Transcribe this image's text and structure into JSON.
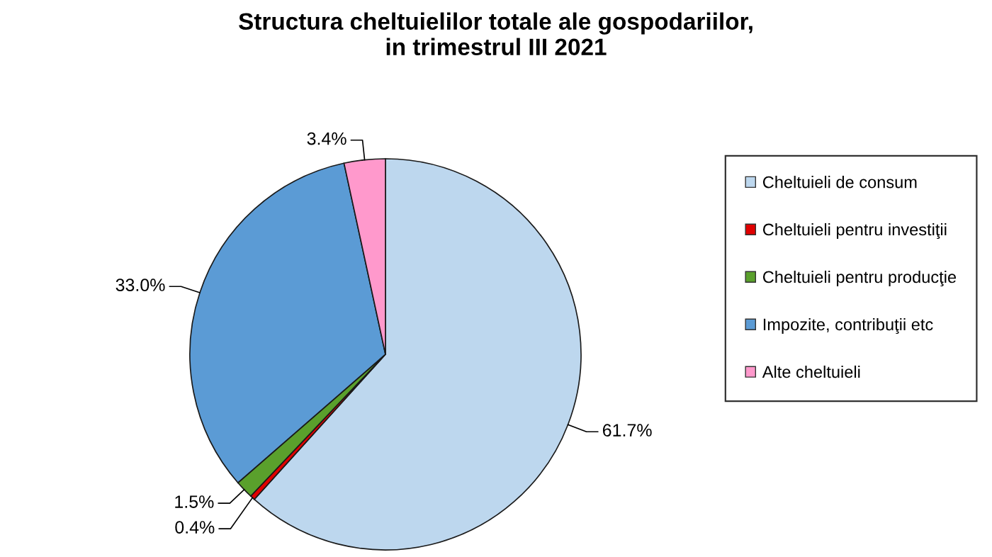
{
  "chart_data": {
    "type": "pie",
    "title": "Structura cheltuielilor totale ale gospodariilor,\nin trimestrul III 2021",
    "categories": [
      "Cheltuieli de consum",
      "Cheltuieli pentru investiţii",
      "Cheltuieli pentru producţie",
      "Impozite, contribuţii etc",
      "Alte cheltuieli"
    ],
    "values": [
      61.7,
      0.4,
      1.5,
      33.0,
      3.4
    ],
    "value_labels": [
      "61.7%",
      "0.4%",
      "1.5%",
      "33.0%",
      "3.4%"
    ],
    "colors": [
      "#bdd7ee",
      "#e00000",
      "#5aa02c",
      "#5b9bd5",
      "#ff99cc"
    ],
    "legend": "right"
  }
}
